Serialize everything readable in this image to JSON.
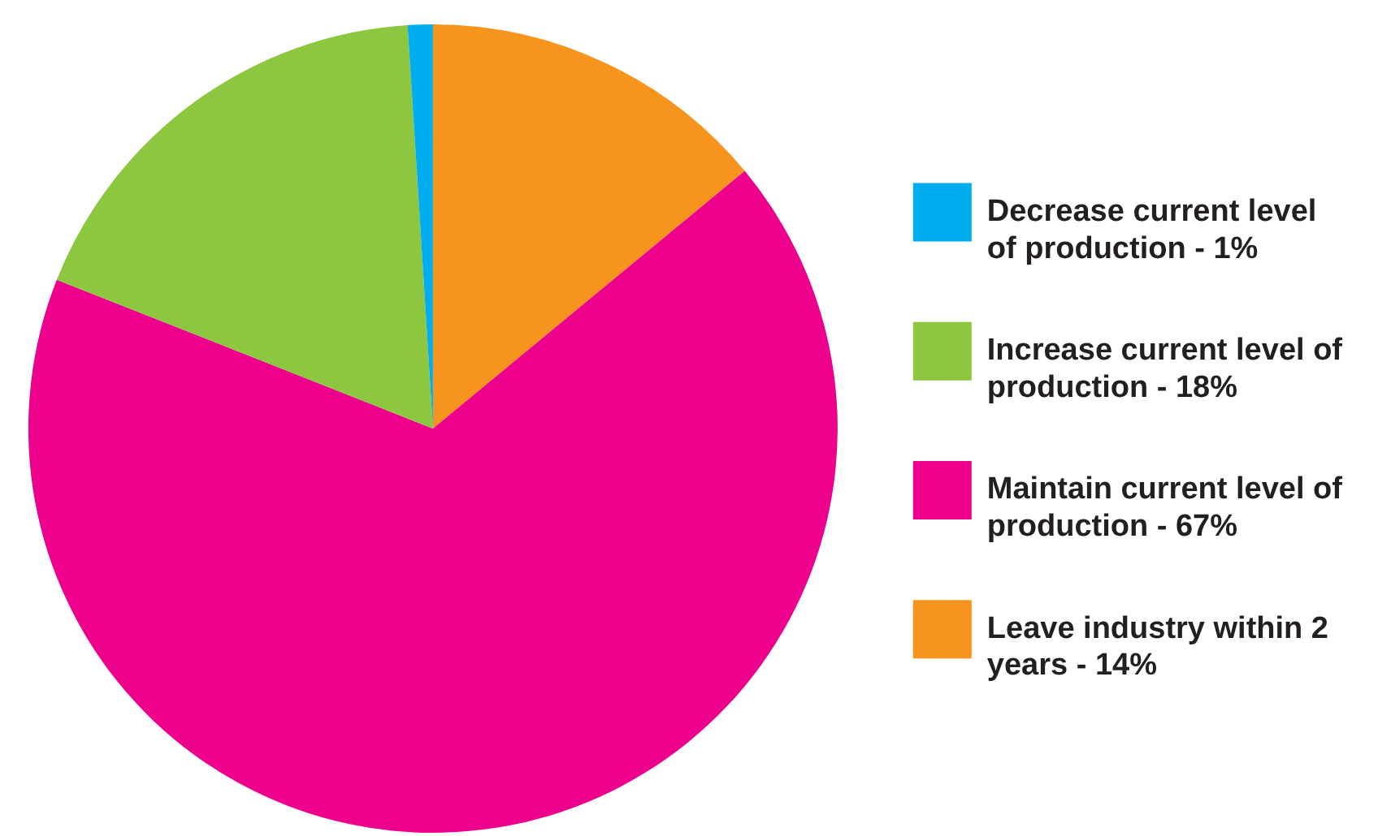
{
  "chart_data": {
    "type": "pie",
    "categories": [
      "Decrease current level of production - 1%",
      "Increase current level of production - 18%",
      "Maintain current level of production - 67%",
      "Leave industry within 2 years - 14%"
    ],
    "values": [
      1,
      18,
      67,
      14
    ],
    "colors": [
      "#00aeef",
      "#8dc63f",
      "#ec008c",
      "#f7941d"
    ],
    "legend": "right"
  }
}
